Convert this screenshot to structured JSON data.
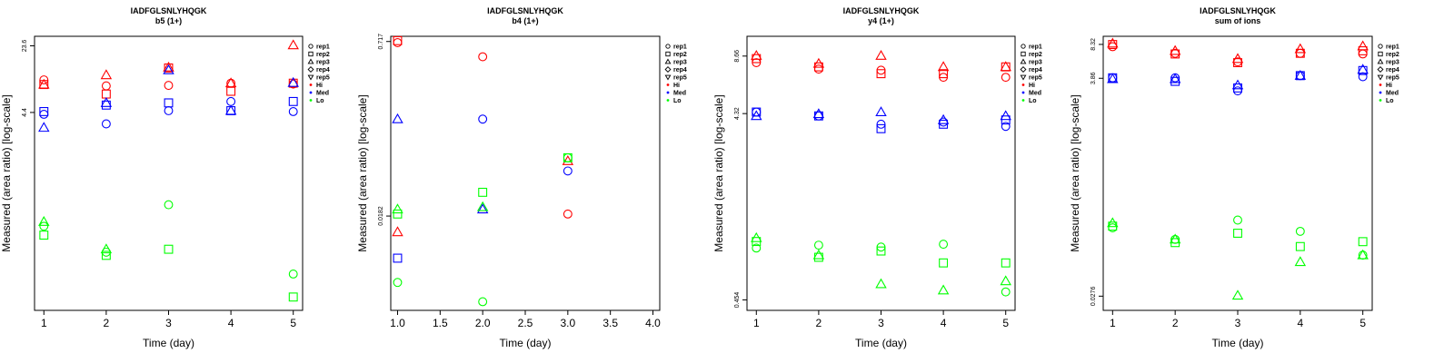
{
  "palette": {
    "Hi": "#ff0000",
    "Med": "#0000ff",
    "Lo": "#00ff00"
  },
  "legend": {
    "replicates": [
      {
        "label": "rep1",
        "shape": "circle"
      },
      {
        "label": "rep2",
        "shape": "square"
      },
      {
        "label": "rep3",
        "shape": "triangle"
      },
      {
        "label": "rep4",
        "shape": "diamond"
      },
      {
        "label": "rep5",
        "shape": "triangle-down"
      }
    ],
    "groups": [
      {
        "label": "Hi",
        "color": "#ff0000"
      },
      {
        "label": "Med",
        "color": "#0000ff"
      },
      {
        "label": "Lo",
        "color": "#00ff00"
      }
    ]
  },
  "chart_data": [
    {
      "type": "scatter",
      "title": "IADFGLSNLYHQGK",
      "subtitle": "b5 (1+)",
      "xlabel": "Time (day)",
      "ylabel": "Measured (area ratio) [log-scale]",
      "y_scale": "log",
      "xlim": [
        0.85,
        5.15
      ],
      "xticks": [
        1,
        2,
        3,
        4,
        5
      ],
      "xtick_labels": [
        "1",
        "2",
        "3",
        "4",
        "5"
      ],
      "ylim": [
        0.03,
        30
      ],
      "yticks": [
        4.4,
        23.6
      ],
      "ytick_labels": [
        "4.4",
        "23.6"
      ],
      "grid": false,
      "legend_position": "right",
      "points": [
        {
          "x": 1,
          "y": 10,
          "rep": "rep1",
          "group": "Hi"
        },
        {
          "x": 1,
          "y": 8.9,
          "rep": "rep2",
          "group": "Hi"
        },
        {
          "x": 1,
          "y": 8.9,
          "rep": "rep3",
          "group": "Hi"
        },
        {
          "x": 2,
          "y": 8.6,
          "rep": "rep1",
          "group": "Hi"
        },
        {
          "x": 2,
          "y": 7.0,
          "rep": "rep2",
          "group": "Hi"
        },
        {
          "x": 2,
          "y": 11.3,
          "rep": "rep3",
          "group": "Hi"
        },
        {
          "x": 3,
          "y": 8.7,
          "rep": "rep1",
          "group": "Hi"
        },
        {
          "x": 3,
          "y": 13.5,
          "rep": "rep2",
          "group": "Hi"
        },
        {
          "x": 3,
          "y": 13.7,
          "rep": "rep3",
          "group": "Hi"
        },
        {
          "x": 4,
          "y": 9.2,
          "rep": "rep1",
          "group": "Hi"
        },
        {
          "x": 4,
          "y": 7.5,
          "rep": "rep2",
          "group": "Hi"
        },
        {
          "x": 4,
          "y": 9.2,
          "rep": "rep3",
          "group": "Hi"
        },
        {
          "x": 5,
          "y": 9.0,
          "rep": "rep1",
          "group": "Hi"
        },
        {
          "x": 5,
          "y": 9.2,
          "rep": "rep2",
          "group": "Hi"
        },
        {
          "x": 5,
          "y": 24.0,
          "rep": "rep3",
          "group": "Hi"
        },
        {
          "x": 1,
          "y": 4.2,
          "rep": "rep1",
          "group": "Med"
        },
        {
          "x": 1,
          "y": 4.5,
          "rep": "rep2",
          "group": "Med"
        },
        {
          "x": 1,
          "y": 3.0,
          "rep": "rep3",
          "group": "Med"
        },
        {
          "x": 2,
          "y": 3.3,
          "rep": "rep1",
          "group": "Med"
        },
        {
          "x": 2,
          "y": 5.3,
          "rep": "rep2",
          "group": "Med"
        },
        {
          "x": 2,
          "y": 5.6,
          "rep": "rep3",
          "group": "Med"
        },
        {
          "x": 3,
          "y": 4.6,
          "rep": "rep1",
          "group": "Med"
        },
        {
          "x": 3,
          "y": 5.6,
          "rep": "rep2",
          "group": "Med"
        },
        {
          "x": 3,
          "y": 12.8,
          "rep": "rep3",
          "group": "Med"
        },
        {
          "x": 4,
          "y": 5.8,
          "rep": "rep1",
          "group": "Med"
        },
        {
          "x": 4,
          "y": 4.6,
          "rep": "rep2",
          "group": "Med"
        },
        {
          "x": 4,
          "y": 4.6,
          "rep": "rep3",
          "group": "Med"
        },
        {
          "x": 5,
          "y": 4.5,
          "rep": "rep1",
          "group": "Med"
        },
        {
          "x": 5,
          "y": 5.8,
          "rep": "rep2",
          "group": "Med"
        },
        {
          "x": 5,
          "y": 9.3,
          "rep": "rep3",
          "group": "Med"
        },
        {
          "x": 1,
          "y": 0.25,
          "rep": "rep1",
          "group": "Lo"
        },
        {
          "x": 1,
          "y": 0.2,
          "rep": "rep2",
          "group": "Lo"
        },
        {
          "x": 1,
          "y": 0.28,
          "rep": "rep3",
          "group": "Lo"
        },
        {
          "x": 2,
          "y": 0.13,
          "rep": "rep1",
          "group": "Lo"
        },
        {
          "x": 2,
          "y": 0.12,
          "rep": "rep2",
          "group": "Lo"
        },
        {
          "x": 2,
          "y": 0.14,
          "rep": "rep3",
          "group": "Lo"
        },
        {
          "x": 3,
          "y": 0.43,
          "rep": "rep1",
          "group": "Lo"
        },
        {
          "x": 3,
          "y": 0.14,
          "rep": "rep2",
          "group": "Lo"
        },
        {
          "x": 5,
          "y": 0.075,
          "rep": "rep1",
          "group": "Lo"
        },
        {
          "x": 5,
          "y": 0.042,
          "rep": "rep2",
          "group": "Lo"
        }
      ]
    },
    {
      "type": "scatter",
      "title": "IADFGLSNLYHQGK",
      "subtitle": "b4 (1+)",
      "xlabel": "Time (day)",
      "ylabel": "Measured (area ratio) [log-scale]",
      "y_scale": "log",
      "xlim": [
        0.92,
        4.08
      ],
      "xticks": [
        1.0,
        1.5,
        2.0,
        2.5,
        3.0,
        3.5,
        4.0
      ],
      "xtick_labels": [
        "1.0",
        "1.5",
        "2.0",
        "2.5",
        "3.0",
        "3.5",
        "4.0"
      ],
      "ylim": [
        0.0025,
        0.8
      ],
      "yticks": [
        0.0182,
        0.717
      ],
      "ytick_labels": [
        "0.0182",
        "0.717"
      ],
      "grid": false,
      "legend_position": "right",
      "points": [
        {
          "x": 1,
          "y": 0.7,
          "rep": "rep1",
          "group": "Hi"
        },
        {
          "x": 1,
          "y": 0.73,
          "rep": "rep2",
          "group": "Hi"
        },
        {
          "x": 1,
          "y": 0.013,
          "rep": "rep3",
          "group": "Hi"
        },
        {
          "x": 2,
          "y": 0.52,
          "rep": "rep1",
          "group": "Hi"
        },
        {
          "x": 3,
          "y": 0.019,
          "rep": "rep1",
          "group": "Hi"
        },
        {
          "x": 3,
          "y": 0.058,
          "rep": "rep3",
          "group": "Hi"
        },
        {
          "x": 1,
          "y": 0.0075,
          "rep": "rep2",
          "group": "Med"
        },
        {
          "x": 1,
          "y": 0.14,
          "rep": "rep3",
          "group": "Med"
        },
        {
          "x": 2,
          "y": 0.14,
          "rep": "rep1",
          "group": "Med"
        },
        {
          "x": 2,
          "y": 0.021,
          "rep": "rep3",
          "group": "Med"
        },
        {
          "x": 3,
          "y": 0.047,
          "rep": "rep1",
          "group": "Med"
        },
        {
          "x": 1,
          "y": 0.0045,
          "rep": "rep1",
          "group": "Lo"
        },
        {
          "x": 1,
          "y": 0.019,
          "rep": "rep2",
          "group": "Lo"
        },
        {
          "x": 1,
          "y": 0.021,
          "rep": "rep3",
          "group": "Lo"
        },
        {
          "x": 2,
          "y": 0.003,
          "rep": "rep1",
          "group": "Lo"
        },
        {
          "x": 2,
          "y": 0.03,
          "rep": "rep2",
          "group": "Lo"
        },
        {
          "x": 2,
          "y": 0.022,
          "rep": "rep3",
          "group": "Lo"
        },
        {
          "x": 3,
          "y": 0.062,
          "rep": "rep1",
          "group": "Lo"
        },
        {
          "x": 3,
          "y": 0.062,
          "rep": "rep2",
          "group": "Lo"
        }
      ]
    },
    {
      "type": "scatter",
      "title": "IADFGLSNLYHQGK",
      "subtitle": "y4 (1+)",
      "xlabel": "Time (day)",
      "ylabel": "Measured (area ratio) [log-scale]",
      "y_scale": "log",
      "xlim": [
        0.85,
        5.15
      ],
      "xticks": [
        1,
        2,
        3,
        4,
        5
      ],
      "xtick_labels": [
        "1",
        "2",
        "3",
        "4",
        "5"
      ],
      "ylim": [
        0.4,
        11
      ],
      "yticks": [
        0.454,
        4.32,
        8.66
      ],
      "ytick_labels": [
        "0.454",
        "4.32",
        "8.66"
      ],
      "grid": false,
      "legend_position": "right",
      "points": [
        {
          "x": 1,
          "y": 8.0,
          "rep": "rep1",
          "group": "Hi"
        },
        {
          "x": 1,
          "y": 8.4,
          "rep": "rep2",
          "group": "Hi"
        },
        {
          "x": 1,
          "y": 8.7,
          "rep": "rep3",
          "group": "Hi"
        },
        {
          "x": 2,
          "y": 7.4,
          "rep": "rep1",
          "group": "Hi"
        },
        {
          "x": 2,
          "y": 7.6,
          "rep": "rep2",
          "group": "Hi"
        },
        {
          "x": 2,
          "y": 7.9,
          "rep": "rep3",
          "group": "Hi"
        },
        {
          "x": 3,
          "y": 7.3,
          "rep": "rep1",
          "group": "Hi"
        },
        {
          "x": 3,
          "y": 7.0,
          "rep": "rep2",
          "group": "Hi"
        },
        {
          "x": 3,
          "y": 8.7,
          "rep": "rep3",
          "group": "Hi"
        },
        {
          "x": 4,
          "y": 6.7,
          "rep": "rep1",
          "group": "Hi"
        },
        {
          "x": 4,
          "y": 7.0,
          "rep": "rep2",
          "group": "Hi"
        },
        {
          "x": 4,
          "y": 7.6,
          "rep": "rep3",
          "group": "Hi"
        },
        {
          "x": 5,
          "y": 6.7,
          "rep": "rep1",
          "group": "Hi"
        },
        {
          "x": 5,
          "y": 7.6,
          "rep": "rep2",
          "group": "Hi"
        },
        {
          "x": 5,
          "y": 7.6,
          "rep": "rep3",
          "group": "Hi"
        },
        {
          "x": 1,
          "y": 4.4,
          "rep": "rep1",
          "group": "Med"
        },
        {
          "x": 1,
          "y": 4.4,
          "rep": "rep2",
          "group": "Med"
        },
        {
          "x": 1,
          "y": 4.2,
          "rep": "rep3",
          "group": "Med"
        },
        {
          "x": 2,
          "y": 4.2,
          "rep": "rep1",
          "group": "Med"
        },
        {
          "x": 2,
          "y": 4.2,
          "rep": "rep2",
          "group": "Med"
        },
        {
          "x": 2,
          "y": 4.3,
          "rep": "rep3",
          "group": "Med"
        },
        {
          "x": 3,
          "y": 3.8,
          "rep": "rep1",
          "group": "Med"
        },
        {
          "x": 3,
          "y": 3.6,
          "rep": "rep2",
          "group": "Med"
        },
        {
          "x": 3,
          "y": 4.4,
          "rep": "rep3",
          "group": "Med"
        },
        {
          "x": 4,
          "y": 3.9,
          "rep": "rep1",
          "group": "Med"
        },
        {
          "x": 4,
          "y": 3.8,
          "rep": "rep2",
          "group": "Med"
        },
        {
          "x": 4,
          "y": 4.0,
          "rep": "rep3",
          "group": "Med"
        },
        {
          "x": 5,
          "y": 3.7,
          "rep": "rep1",
          "group": "Med"
        },
        {
          "x": 5,
          "y": 4.0,
          "rep": "rep2",
          "group": "Med"
        },
        {
          "x": 5,
          "y": 4.2,
          "rep": "rep3",
          "group": "Med"
        },
        {
          "x": 1,
          "y": 0.85,
          "rep": "rep1",
          "group": "Lo"
        },
        {
          "x": 1,
          "y": 0.92,
          "rep": "rep2",
          "group": "Lo"
        },
        {
          "x": 1,
          "y": 0.96,
          "rep": "rep3",
          "group": "Lo"
        },
        {
          "x": 2,
          "y": 0.88,
          "rep": "rep1",
          "group": "Lo"
        },
        {
          "x": 2,
          "y": 0.76,
          "rep": "rep2",
          "group": "Lo"
        },
        {
          "x": 2,
          "y": 0.78,
          "rep": "rep3",
          "group": "Lo"
        },
        {
          "x": 3,
          "y": 0.86,
          "rep": "rep1",
          "group": "Lo"
        },
        {
          "x": 3,
          "y": 0.82,
          "rep": "rep2",
          "group": "Lo"
        },
        {
          "x": 3,
          "y": 0.55,
          "rep": "rep3",
          "group": "Lo"
        },
        {
          "x": 4,
          "y": 0.89,
          "rep": "rep1",
          "group": "Lo"
        },
        {
          "x": 4,
          "y": 0.71,
          "rep": "rep2",
          "group": "Lo"
        },
        {
          "x": 4,
          "y": 0.51,
          "rep": "rep3",
          "group": "Lo"
        },
        {
          "x": 5,
          "y": 0.5,
          "rep": "rep1",
          "group": "Lo"
        },
        {
          "x": 5,
          "y": 0.71,
          "rep": "rep2",
          "group": "Lo"
        },
        {
          "x": 5,
          "y": 0.57,
          "rep": "rep3",
          "group": "Lo"
        }
      ]
    },
    {
      "type": "scatter",
      "title": "IADFGLSNLYHQGK",
      "subtitle": "sum of ions",
      "xlabel": "Time (day)",
      "ylabel": "Measured (area ratio) [log-scale]",
      "y_scale": "log",
      "xlim": [
        0.85,
        5.15
      ],
      "xticks": [
        1,
        2,
        3,
        4,
        5
      ],
      "xtick_labels": [
        "1",
        "2",
        "3",
        "4",
        "5"
      ],
      "ylim": [
        0.02,
        10
      ],
      "yticks": [
        0.0276,
        3.86,
        8.32
      ],
      "ytick_labels": [
        "0.0276",
        "3.86",
        "8.32"
      ],
      "grid": false,
      "legend_position": "right",
      "points": [
        {
          "x": 1,
          "y": 7.9,
          "rep": "rep1",
          "group": "Hi"
        },
        {
          "x": 1,
          "y": 8.3,
          "rep": "rep2",
          "group": "Hi"
        },
        {
          "x": 1,
          "y": 8.5,
          "rep": "rep3",
          "group": "Hi"
        },
        {
          "x": 2,
          "y": 6.8,
          "rep": "rep1",
          "group": "Hi"
        },
        {
          "x": 2,
          "y": 6.7,
          "rep": "rep2",
          "group": "Hi"
        },
        {
          "x": 2,
          "y": 7.2,
          "rep": "rep3",
          "group": "Hi"
        },
        {
          "x": 3,
          "y": 5.6,
          "rep": "rep1",
          "group": "Hi"
        },
        {
          "x": 3,
          "y": 5.5,
          "rep": "rep2",
          "group": "Hi"
        },
        {
          "x": 3,
          "y": 6.0,
          "rep": "rep3",
          "group": "Hi"
        },
        {
          "x": 4,
          "y": 6.8,
          "rep": "rep1",
          "group": "Hi"
        },
        {
          "x": 4,
          "y": 6.8,
          "rep": "rep2",
          "group": "Hi"
        },
        {
          "x": 4,
          "y": 7.5,
          "rep": "rep3",
          "group": "Hi"
        },
        {
          "x": 5,
          "y": 6.7,
          "rep": "rep1",
          "group": "Hi"
        },
        {
          "x": 5,
          "y": 7.2,
          "rep": "rep2",
          "group": "Hi"
        },
        {
          "x": 5,
          "y": 8.0,
          "rep": "rep3",
          "group": "Hi"
        },
        {
          "x": 1,
          "y": 3.9,
          "rep": "rep1",
          "group": "Med"
        },
        {
          "x": 1,
          "y": 3.9,
          "rep": "rep2",
          "group": "Med"
        },
        {
          "x": 1,
          "y": 3.8,
          "rep": "rep3",
          "group": "Med"
        },
        {
          "x": 2,
          "y": 3.9,
          "rep": "rep1",
          "group": "Med"
        },
        {
          "x": 2,
          "y": 3.6,
          "rep": "rep2",
          "group": "Med"
        },
        {
          "x": 2,
          "y": 3.8,
          "rep": "rep3",
          "group": "Med"
        },
        {
          "x": 3,
          "y": 2.9,
          "rep": "rep1",
          "group": "Med"
        },
        {
          "x": 3,
          "y": 3.1,
          "rep": "rep2",
          "group": "Med"
        },
        {
          "x": 3,
          "y": 3.3,
          "rep": "rep3",
          "group": "Med"
        },
        {
          "x": 4,
          "y": 4.1,
          "rep": "rep1",
          "group": "Med"
        },
        {
          "x": 4,
          "y": 4.1,
          "rep": "rep2",
          "group": "Med"
        },
        {
          "x": 4,
          "y": 4.1,
          "rep": "rep3",
          "group": "Med"
        },
        {
          "x": 5,
          "y": 4.0,
          "rep": "rep1",
          "group": "Med"
        },
        {
          "x": 5,
          "y": 4.6,
          "rep": "rep2",
          "group": "Med"
        },
        {
          "x": 5,
          "y": 4.7,
          "rep": "rep3",
          "group": "Med"
        },
        {
          "x": 1,
          "y": 0.13,
          "rep": "rep1",
          "group": "Lo"
        },
        {
          "x": 1,
          "y": 0.135,
          "rep": "rep2",
          "group": "Lo"
        },
        {
          "x": 1,
          "y": 0.145,
          "rep": "rep3",
          "group": "Lo"
        },
        {
          "x": 2,
          "y": 0.1,
          "rep": "rep1",
          "group": "Lo"
        },
        {
          "x": 2,
          "y": 0.093,
          "rep": "rep2",
          "group": "Lo"
        },
        {
          "x": 2,
          "y": 0.1,
          "rep": "rep3",
          "group": "Lo"
        },
        {
          "x": 3,
          "y": 0.155,
          "rep": "rep1",
          "group": "Lo"
        },
        {
          "x": 3,
          "y": 0.115,
          "rep": "rep2",
          "group": "Lo"
        },
        {
          "x": 3,
          "y": 0.028,
          "rep": "rep3",
          "group": "Lo"
        },
        {
          "x": 4,
          "y": 0.12,
          "rep": "rep1",
          "group": "Lo"
        },
        {
          "x": 4,
          "y": 0.085,
          "rep": "rep2",
          "group": "Lo"
        },
        {
          "x": 4,
          "y": 0.06,
          "rep": "rep3",
          "group": "Lo"
        },
        {
          "x": 5,
          "y": 0.07,
          "rep": "rep1",
          "group": "Lo"
        },
        {
          "x": 5,
          "y": 0.095,
          "rep": "rep2",
          "group": "Lo"
        },
        {
          "x": 5,
          "y": 0.07,
          "rep": "rep3",
          "group": "Lo"
        }
      ]
    }
  ]
}
